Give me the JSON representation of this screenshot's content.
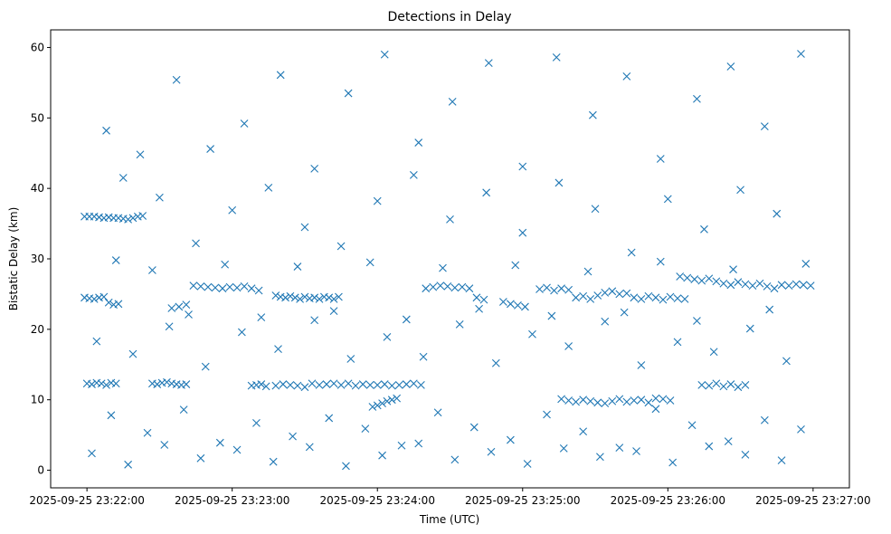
{
  "chart_data": {
    "type": "scatter",
    "title": "Detections in Delay",
    "xlabel": "Time (UTC)",
    "ylabel": "Bistatic Delay (km)",
    "marker": "x",
    "color": "#1f77b4",
    "grid": false,
    "x_unit": "UTC time",
    "xlim": [
      "2025-09-25 23:21:45",
      "2025-09-25 23:27:15"
    ],
    "ylim": [
      -2.5,
      62.5
    ],
    "x_ticks": [
      "2025-09-25 23:22:00",
      "2025-09-25 23:23:00",
      "2025-09-25 23:24:00",
      "2025-09-25 23:25:00",
      "2025-09-25 23:26:00",
      "2025-09-25 23:27:00"
    ],
    "y_ticks": [
      "0",
      "10",
      "20",
      "30",
      "40",
      "50",
      "60"
    ],
    "series": [
      {
        "x": [
          "2025-09-25 23:21:59",
          "2025-09-25 23:22:01",
          "2025-09-25 23:22:03",
          "2025-09-25 23:22:05",
          "2025-09-25 23:22:07",
          "2025-09-25 23:22:09",
          "2025-09-25 23:22:11",
          "2025-09-25 23:22:13",
          "2025-09-25 23:22:15",
          "2025-09-25 23:22:17",
          "2025-09-25 23:22:19",
          "2025-09-25 23:22:21",
          "2025-09-25 23:22:23",
          "2025-09-25 23:21:59",
          "2025-09-25 23:22:01",
          "2025-09-25 23:22:03",
          "2025-09-25 23:22:05",
          "2025-09-25 23:22:07",
          "2025-09-25 23:22:09",
          "2025-09-25 23:22:11",
          "2025-09-25 23:22:13",
          "2025-09-25 23:22:00",
          "2025-09-25 23:22:02",
          "2025-09-25 23:22:04",
          "2025-09-25 23:22:06",
          "2025-09-25 23:22:08",
          "2025-09-25 23:22:10",
          "2025-09-25 23:22:12",
          "2025-09-25 23:22:27",
          "2025-09-25 23:22:29",
          "2025-09-25 23:22:31",
          "2025-09-25 23:22:33",
          "2025-09-25 23:22:35",
          "2025-09-25 23:22:37",
          "2025-09-25 23:22:39",
          "2025-09-25 23:22:41",
          "2025-09-25 23:22:35",
          "2025-09-25 23:22:38",
          "2025-09-25 23:22:41",
          "2025-09-25 23:22:44",
          "2025-09-25 23:22:47",
          "2025-09-25 23:22:50",
          "2025-09-25 23:22:53",
          "2025-09-25 23:22:56",
          "2025-09-25 23:22:59",
          "2025-09-25 23:23:02",
          "2025-09-25 23:23:05",
          "2025-09-25 23:23:08",
          "2025-09-25 23:23:11",
          "2025-09-25 23:23:08",
          "2025-09-25 23:23:10",
          "2025-09-25 23:23:12",
          "2025-09-25 23:23:14",
          "2025-09-25 23:23:18",
          "2025-09-25 23:23:20",
          "2025-09-25 23:23:22",
          "2025-09-25 23:23:24",
          "2025-09-25 23:23:26",
          "2025-09-25 23:23:28",
          "2025-09-25 23:23:30",
          "2025-09-25 23:23:32",
          "2025-09-25 23:23:34",
          "2025-09-25 23:23:36",
          "2025-09-25 23:23:38",
          "2025-09-25 23:23:40",
          "2025-09-25 23:23:42",
          "2025-09-25 23:23:44",
          "2025-09-25 23:23:18",
          "2025-09-25 23:23:21",
          "2025-09-25 23:23:24",
          "2025-09-25 23:23:27",
          "2025-09-25 23:23:30",
          "2025-09-25 23:23:33",
          "2025-09-25 23:23:36",
          "2025-09-25 23:23:39",
          "2025-09-25 23:23:42",
          "2025-09-25 23:23:45",
          "2025-09-25 23:23:48",
          "2025-09-25 23:23:51",
          "2025-09-25 23:23:54",
          "2025-09-25 23:23:57",
          "2025-09-25 23:24:00",
          "2025-09-25 23:24:03",
          "2025-09-25 23:24:06",
          "2025-09-25 23:24:09",
          "2025-09-25 23:24:12",
          "2025-09-25 23:24:15",
          "2025-09-25 23:24:18",
          "2025-09-25 23:23:58",
          "2025-09-25 23:24:00",
          "2025-09-25 23:24:02",
          "2025-09-25 23:24:04",
          "2025-09-25 23:24:06",
          "2025-09-25 23:24:08",
          "2025-09-25 23:24:20",
          "2025-09-25 23:24:23",
          "2025-09-25 23:24:26",
          "2025-09-25 23:24:29",
          "2025-09-25 23:24:32",
          "2025-09-25 23:24:35",
          "2025-09-25 23:24:38",
          "2025-09-25 23:24:41",
          "2025-09-25 23:24:44",
          "2025-09-25 23:24:52",
          "2025-09-25 23:24:55",
          "2025-09-25 23:24:58",
          "2025-09-25 23:25:01",
          "2025-09-25 23:25:07",
          "2025-09-25 23:25:10",
          "2025-09-25 23:25:13",
          "2025-09-25 23:25:16",
          "2025-09-25 23:25:19",
          "2025-09-25 23:25:22",
          "2025-09-25 23:25:25",
          "2025-09-25 23:25:28",
          "2025-09-25 23:25:31",
          "2025-09-25 23:25:34",
          "2025-09-25 23:25:37",
          "2025-09-25 23:25:40",
          "2025-09-25 23:25:43",
          "2025-09-25 23:25:46",
          "2025-09-25 23:25:49",
          "2025-09-25 23:25:52",
          "2025-09-25 23:25:55",
          "2025-09-25 23:25:58",
          "2025-09-25 23:26:01",
          "2025-09-25 23:26:04",
          "2025-09-25 23:26:07",
          "2025-09-25 23:25:16",
          "2025-09-25 23:25:19",
          "2025-09-25 23:25:22",
          "2025-09-25 23:25:25",
          "2025-09-25 23:25:28",
          "2025-09-25 23:25:31",
          "2025-09-25 23:25:34",
          "2025-09-25 23:25:37",
          "2025-09-25 23:25:40",
          "2025-09-25 23:25:43",
          "2025-09-25 23:25:46",
          "2025-09-25 23:25:49",
          "2025-09-25 23:25:52",
          "2025-09-25 23:25:55",
          "2025-09-25 23:25:58",
          "2025-09-25 23:26:01",
          "2025-09-25 23:26:05",
          "2025-09-25 23:26:08",
          "2025-09-25 23:26:11",
          "2025-09-25 23:26:14",
          "2025-09-25 23:26:17",
          "2025-09-25 23:26:20",
          "2025-09-25 23:26:23",
          "2025-09-25 23:26:26",
          "2025-09-25 23:26:29",
          "2025-09-25 23:26:32",
          "2025-09-25 23:26:35",
          "2025-09-25 23:26:38",
          "2025-09-25 23:26:41",
          "2025-09-25 23:26:44",
          "2025-09-25 23:26:47",
          "2025-09-25 23:26:50",
          "2025-09-25 23:26:53",
          "2025-09-25 23:26:56",
          "2025-09-25 23:26:59",
          "2025-09-25 23:26:14",
          "2025-09-25 23:26:17",
          "2025-09-25 23:26:20",
          "2025-09-25 23:26:23",
          "2025-09-25 23:26:26",
          "2025-09-25 23:26:29",
          "2025-09-25 23:26:32",
          "2025-09-25 23:22:08",
          "2025-09-25 23:22:22",
          "2025-09-25 23:22:37",
          "2025-09-25 23:22:51",
          "2025-09-25 23:23:05",
          "2025-09-25 23:23:20",
          "2025-09-25 23:23:34",
          "2025-09-25 23:23:48",
          "2025-09-25 23:24:03",
          "2025-09-25 23:24:17",
          "2025-09-25 23:24:31",
          "2025-09-25 23:24:46",
          "2025-09-25 23:25:00",
          "2025-09-25 23:25:14",
          "2025-09-25 23:25:29",
          "2025-09-25 23:25:43",
          "2025-09-25 23:25:57",
          "2025-09-25 23:26:12",
          "2025-09-25 23:26:26",
          "2025-09-25 23:26:40",
          "2025-09-25 23:26:55",
          "2025-09-25 23:22:15",
          "2025-09-25 23:22:30",
          "2025-09-25 23:22:45",
          "2025-09-25 23:23:00",
          "2025-09-25 23:23:15",
          "2025-09-25 23:23:30",
          "2025-09-25 23:23:45",
          "2025-09-25 23:24:00",
          "2025-09-25 23:24:15",
          "2025-09-25 23:24:30",
          "2025-09-25 23:24:45",
          "2025-09-25 23:25:00",
          "2025-09-25 23:25:15",
          "2025-09-25 23:25:30",
          "2025-09-25 23:25:45",
          "2025-09-25 23:26:00",
          "2025-09-25 23:26:15",
          "2025-09-25 23:26:30",
          "2025-09-25 23:26:45",
          "2025-09-25 23:22:04",
          "2025-09-25 23:22:19",
          "2025-09-25 23:22:34",
          "2025-09-25 23:22:49",
          "2025-09-25 23:23:04",
          "2025-09-25 23:23:19",
          "2025-09-25 23:23:34",
          "2025-09-25 23:23:49",
          "2025-09-25 23:24:04",
          "2025-09-25 23:24:19",
          "2025-09-25 23:24:34",
          "2025-09-25 23:24:49",
          "2025-09-25 23:25:04",
          "2025-09-25 23:25:19",
          "2025-09-25 23:25:34",
          "2025-09-25 23:25:49",
          "2025-09-25 23:26:04",
          "2025-09-25 23:26:19",
          "2025-09-25 23:26:34",
          "2025-09-25 23:26:49",
          "2025-09-25 23:22:10",
          "2025-09-25 23:22:25",
          "2025-09-25 23:22:40",
          "2025-09-25 23:22:55",
          "2025-09-25 23:23:10",
          "2025-09-25 23:23:25",
          "2025-09-25 23:23:40",
          "2025-09-25 23:23:55",
          "2025-09-25 23:24:10",
          "2025-09-25 23:24:25",
          "2025-09-25 23:24:40",
          "2025-09-25 23:24:55",
          "2025-09-25 23:25:10",
          "2025-09-25 23:25:25",
          "2025-09-25 23:25:40",
          "2025-09-25 23:25:55",
          "2025-09-25 23:26:10",
          "2025-09-25 23:26:25",
          "2025-09-25 23:26:40",
          "2025-09-25 23:26:55",
          "2025-09-25 23:22:02",
          "2025-09-25 23:22:17",
          "2025-09-25 23:22:32",
          "2025-09-25 23:22:47",
          "2025-09-25 23:23:02",
          "2025-09-25 23:23:17",
          "2025-09-25 23:23:32",
          "2025-09-25 23:23:47",
          "2025-09-25 23:24:02",
          "2025-09-25 23:24:17",
          "2025-09-25 23:24:32",
          "2025-09-25 23:24:47",
          "2025-09-25 23:25:02",
          "2025-09-25 23:25:17",
          "2025-09-25 23:25:32",
          "2025-09-25 23:25:47",
          "2025-09-25 23:26:02",
          "2025-09-25 23:26:17",
          "2025-09-25 23:26:32",
          "2025-09-25 23:26:47",
          "2025-09-25 23:22:12",
          "2025-09-25 23:22:27",
          "2025-09-25 23:22:42",
          "2025-09-25 23:22:57",
          "2025-09-25 23:23:12",
          "2025-09-25 23:23:27",
          "2025-09-25 23:23:42",
          "2025-09-25 23:23:57",
          "2025-09-25 23:24:12",
          "2025-09-25 23:24:27",
          "2025-09-25 23:24:42",
          "2025-09-25 23:24:57",
          "2025-09-25 23:25:12",
          "2025-09-25 23:25:27",
          "2025-09-25 23:25:42",
          "2025-09-25 23:25:57",
          "2025-09-25 23:26:12",
          "2025-09-25 23:26:27",
          "2025-09-25 23:26:42",
          "2025-09-25 23:26:57"
        ],
        "y": [
          36.0,
          36.0,
          36.0,
          35.9,
          35.8,
          35.9,
          35.8,
          35.8,
          35.7,
          35.6,
          35.8,
          36.0,
          36.1,
          24.5,
          24.4,
          24.3,
          24.5,
          24.6,
          23.8,
          23.5,
          23.6,
          12.3,
          12.2,
          12.4,
          12.3,
          12.1,
          12.4,
          12.3,
          12.3,
          12.2,
          12.4,
          12.5,
          12.3,
          12.2,
          12.1,
          12.2,
          23.0,
          23.2,
          23.5,
          26.2,
          26.1,
          26.0,
          25.9,
          25.8,
          26.0,
          25.9,
          26.1,
          25.8,
          25.5,
          12.0,
          12.1,
          12.2,
          11.9,
          24.8,
          24.6,
          24.5,
          24.7,
          24.5,
          24.3,
          24.6,
          24.4,
          24.5,
          24.3,
          24.6,
          24.5,
          24.3,
          24.6,
          12.0,
          12.2,
          12.1,
          12.0,
          11.8,
          12.3,
          12.1,
          12.2,
          12.3,
          12.1,
          12.3,
          12.0,
          12.2,
          12.1,
          12.1,
          12.2,
          12.0,
          12.1,
          12.2,
          12.3,
          12.1,
          9.0,
          9.2,
          9.5,
          9.8,
          10.0,
          10.2,
          25.8,
          26.0,
          26.2,
          26.1,
          25.9,
          26.0,
          25.8,
          24.5,
          24.2,
          23.9,
          23.6,
          23.4,
          23.2,
          25.7,
          25.9,
          25.5,
          25.8,
          25.6,
          24.5,
          24.7,
          24.3,
          24.8,
          25.2,
          25.4,
          25.0,
          25.1,
          24.5,
          24.3,
          24.7,
          24.5,
          24.2,
          24.6,
          24.4,
          24.3,
          10.1,
          9.9,
          9.7,
          10.0,
          9.8,
          9.6,
          9.5,
          9.8,
          10.1,
          9.7,
          9.9,
          10.0,
          9.6,
          10.2,
          10.1,
          9.9,
          27.5,
          27.3,
          27.1,
          26.9,
          27.2,
          26.8,
          26.5,
          26.3,
          26.7,
          26.4,
          26.2,
          26.5,
          26.1,
          25.8,
          26.3,
          26.2,
          26.4,
          26.3,
          26.2,
          12.1,
          12.0,
          12.3,
          11.9,
          12.2,
          11.8,
          12.1,
          48.2,
          44.8,
          55.4,
          45.6,
          49.2,
          56.1,
          42.8,
          53.5,
          59.0,
          46.5,
          52.3,
          57.8,
          43.1,
          58.6,
          50.4,
          55.9,
          44.2,
          52.7,
          57.3,
          48.8,
          59.1,
          41.5,
          38.7,
          32.2,
          36.9,
          40.1,
          34.5,
          31.8,
          38.2,
          41.9,
          35.6,
          39.4,
          33.7,
          40.8,
          37.1,
          30.9,
          38.5,
          34.2,
          39.8,
          36.4,
          18.3,
          16.5,
          20.4,
          14.7,
          19.6,
          17.2,
          21.3,
          15.8,
          18.9,
          16.1,
          20.7,
          15.2,
          19.3,
          17.6,
          21.1,
          14.9,
          18.2,
          16.8,
          20.1,
          15.5,
          7.8,
          5.3,
          8.6,
          3.9,
          6.7,
          4.8,
          7.4,
          5.9,
          3.5,
          8.2,
          6.1,
          4.3,
          7.9,
          5.5,
          3.2,
          8.7,
          6.4,
          4.1,
          7.1,
          5.8,
          2.4,
          0.8,
          3.6,
          1.7,
          2.9,
          1.2,
          3.3,
          0.6,
          2.1,
          3.8,
          1.5,
          2.6,
          0.9,
          3.1,
          1.9,
          2.7,
          1.1,
          3.4,
          2.2,
          1.4,
          29.8,
          28.4,
          22.1,
          29.2,
          21.7,
          28.9,
          22.6,
          29.5,
          21.4,
          28.7,
          22.9,
          29.1,
          21.9,
          28.2,
          22.4,
          29.6,
          21.2,
          28.5,
          22.8,
          29.3
        ]
      }
    ]
  }
}
